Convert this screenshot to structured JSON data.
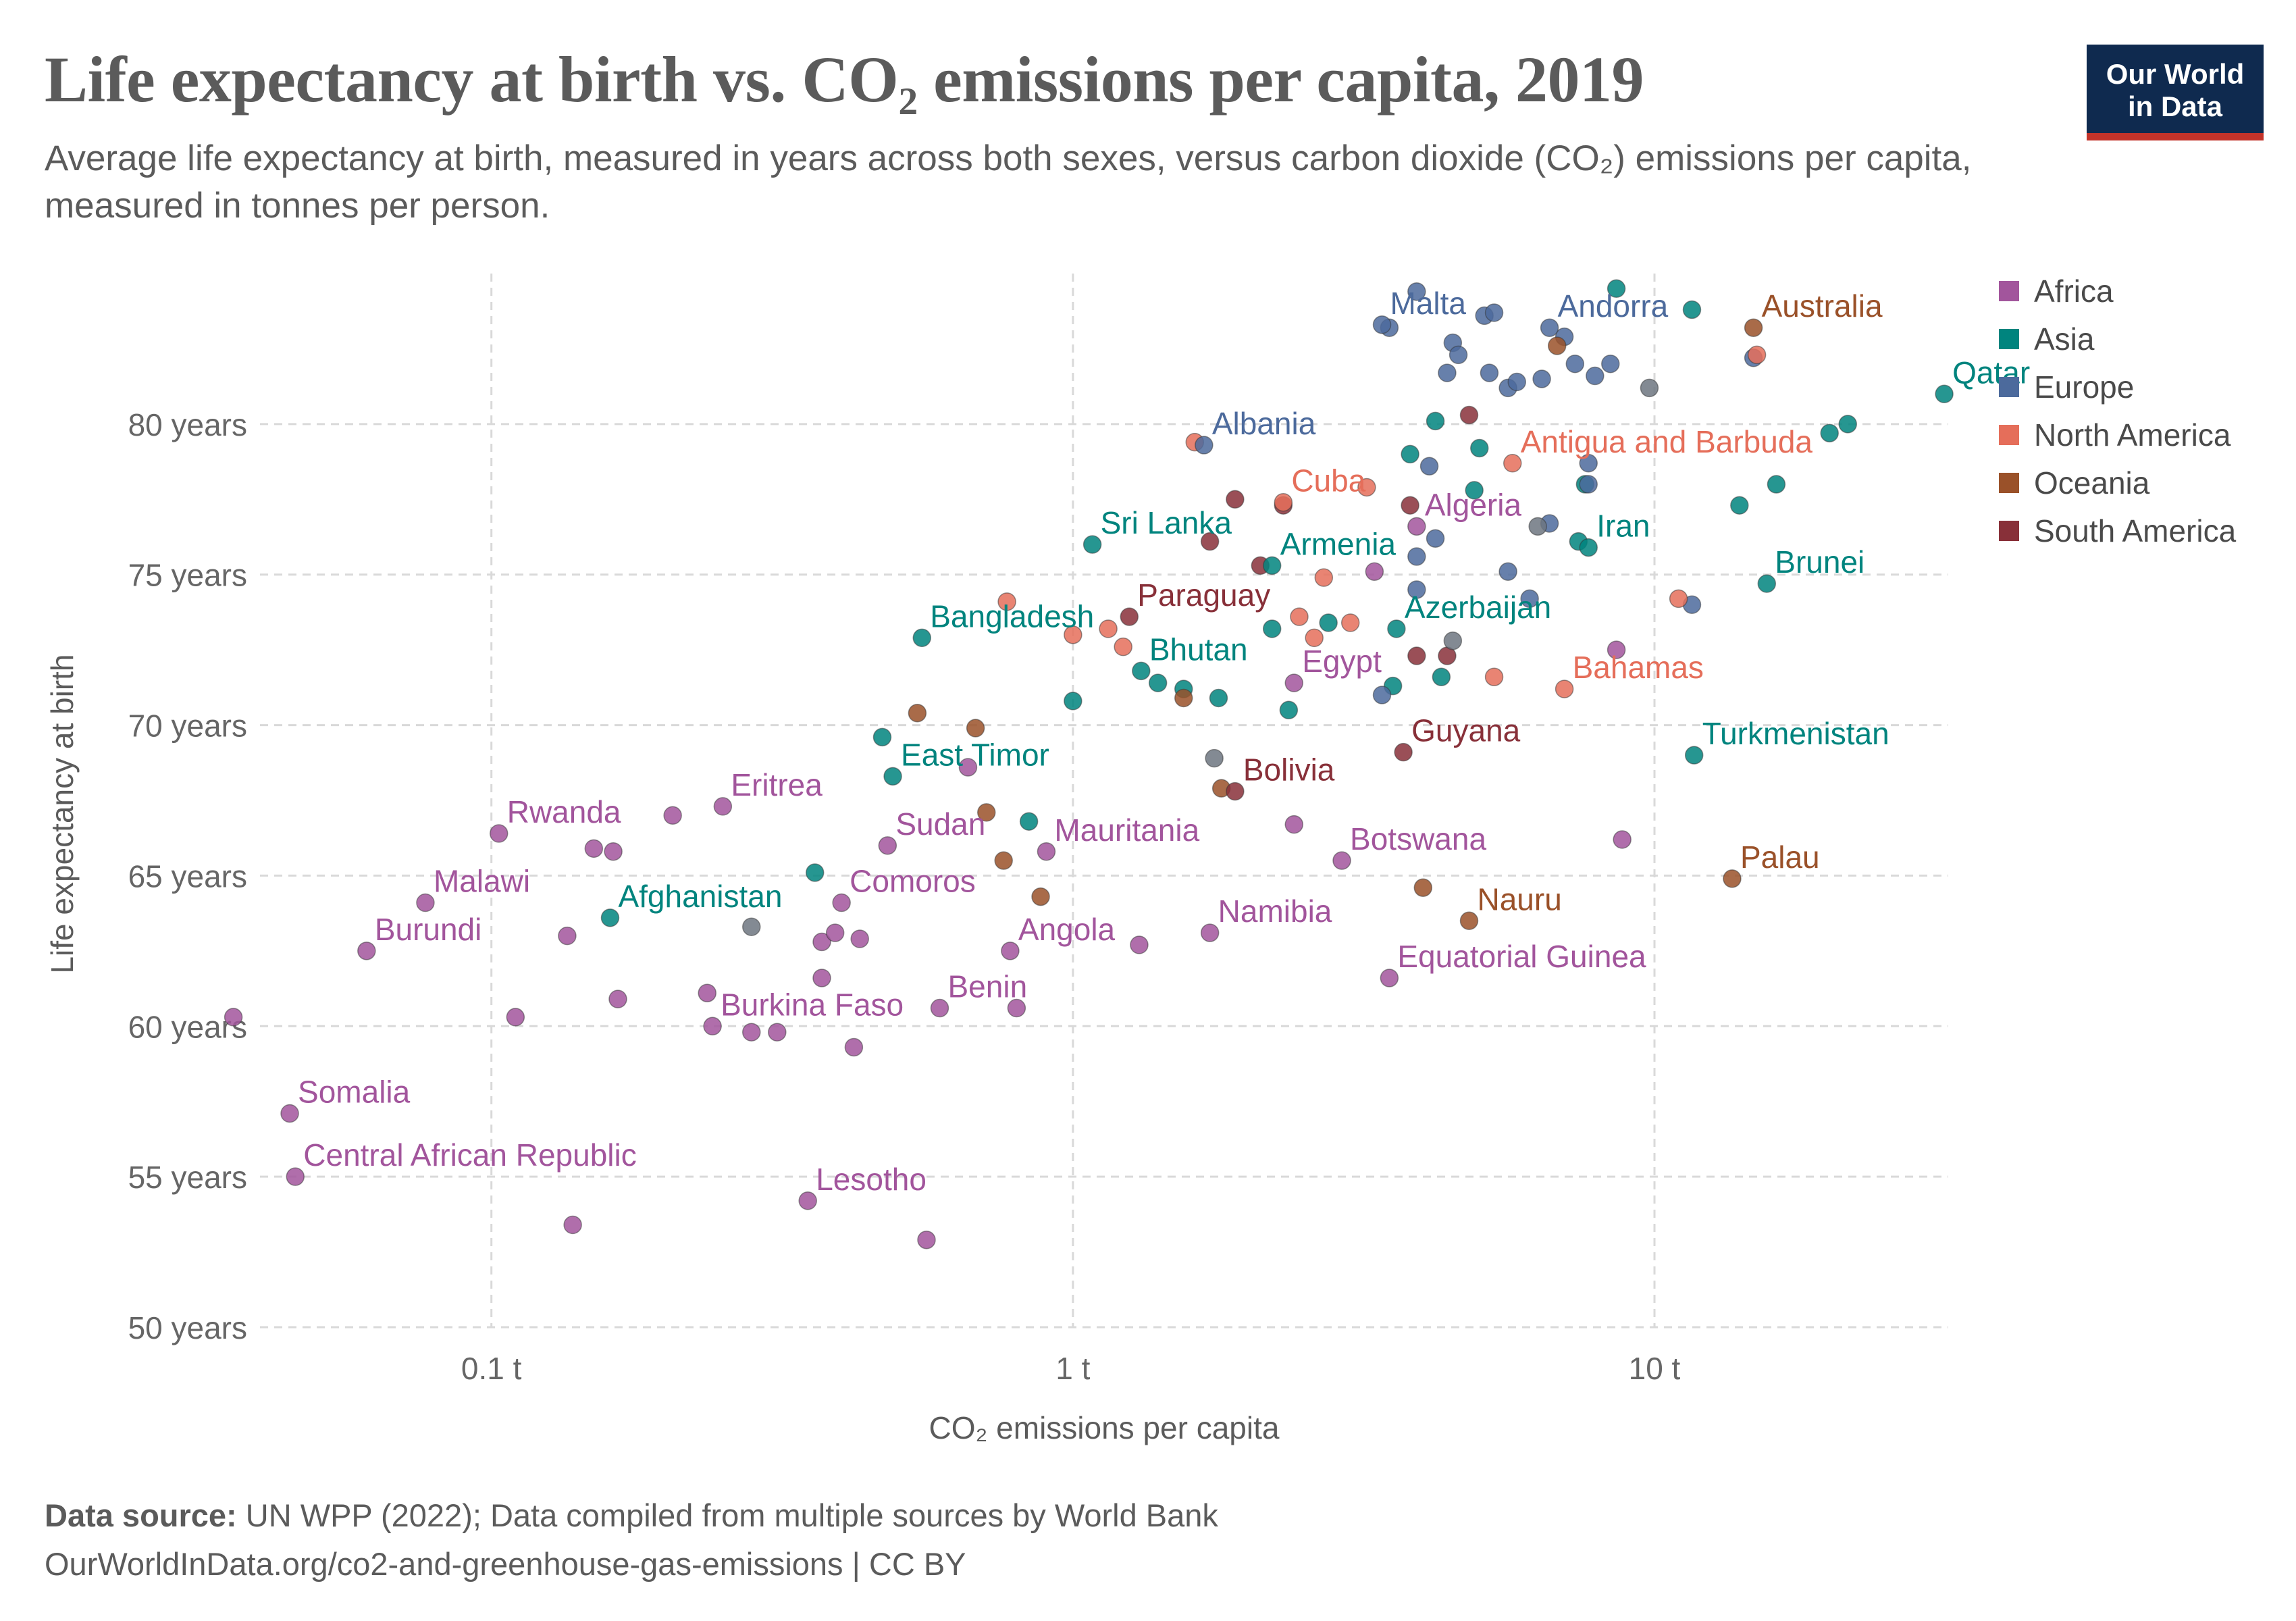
{
  "header": {
    "title": "Life expectancy at birth vs. CO₂ emissions per capita, 2019",
    "subtitle": "Average life expectancy at birth, measured in years across both sexes, versus carbon dioxide (CO₂) emissions per capita, measured in tonnes per person.",
    "logo_line1": "Our World",
    "logo_line2": "in Data"
  },
  "footer": {
    "source_label": "Data source:",
    "source_text": "UN WPP (2022); Data compiled from multiple sources by World Bank",
    "url_line": "OurWorldInData.org/co2-and-greenhouse-gas-emissions | CC BY"
  },
  "colors": {
    "Africa": "#a2559c",
    "Asia": "#00847e",
    "Europe": "#4c6a9c",
    "North America": "#e56e5a",
    "Oceania": "#9a5129",
    "South America": "#883039",
    "Other": "#6d7580"
  },
  "chart_data": {
    "type": "scatter",
    "xlabel": "CO₂ emissions per capita",
    "ylabel": "Life expectancy at birth",
    "x_scale": "log",
    "xlim": [
      0.04,
      32
    ],
    "ylim": [
      50,
      85
    ],
    "x_ticks": [
      {
        "value": 0.1,
        "label": "0.1 t"
      },
      {
        "value": 1,
        "label": "1 t"
      },
      {
        "value": 10,
        "label": "10 t"
      }
    ],
    "y_ticks": [
      {
        "value": 50,
        "label": "50 years"
      },
      {
        "value": 55,
        "label": "55 years"
      },
      {
        "value": 60,
        "label": "60 years"
      },
      {
        "value": 65,
        "label": "65 years"
      },
      {
        "value": 70,
        "label": "70 years"
      },
      {
        "value": 75,
        "label": "75 years"
      },
      {
        "value": 80,
        "label": "80 years"
      }
    ],
    "grid": true,
    "legend_position": "right",
    "legend": [
      "Africa",
      "Asia",
      "Europe",
      "North America",
      "Oceania",
      "South America"
    ],
    "labeled_points": [
      {
        "label": "Malta",
        "region": "Europe",
        "x": 3.4,
        "y": 83.3
      },
      {
        "label": "Andorra",
        "region": "Europe",
        "x": 6.6,
        "y": 83.2
      },
      {
        "label": "Australia",
        "region": "Oceania",
        "x": 14.8,
        "y": 83.2
      },
      {
        "label": "Qatar",
        "region": "Asia",
        "x": 31.5,
        "y": 81.0
      },
      {
        "label": "Albania",
        "region": "Europe",
        "x": 1.68,
        "y": 79.3
      },
      {
        "label": "Antigua and Barbuda",
        "region": "North America",
        "x": 5.7,
        "y": 78.7
      },
      {
        "label": "Cuba",
        "region": "North America",
        "x": 2.3,
        "y": 77.4
      },
      {
        "label": "Algeria",
        "region": "Africa",
        "x": 3.9,
        "y": 76.6
      },
      {
        "label": "Iran",
        "region": "Asia",
        "x": 7.7,
        "y": 75.9
      },
      {
        "label": "Sri Lanka",
        "region": "Asia",
        "x": 1.08,
        "y": 76.0
      },
      {
        "label": "Armenia",
        "region": "Asia",
        "x": 2.2,
        "y": 75.3
      },
      {
        "label": "Brunei",
        "region": "Asia",
        "x": 15.6,
        "y": 74.7
      },
      {
        "label": "Paraguay",
        "region": "South America",
        "x": 1.25,
        "y": 73.6
      },
      {
        "label": "Azerbaijan",
        "region": "Asia",
        "x": 3.6,
        "y": 73.2
      },
      {
        "label": "Bangladesh",
        "region": "Asia",
        "x": 0.55,
        "y": 72.9
      },
      {
        "label": "Bhutan",
        "region": "Asia",
        "x": 1.31,
        "y": 71.8
      },
      {
        "label": "Egypt",
        "region": "Africa",
        "x": 2.4,
        "y": 71.4
      },
      {
        "label": "Bahamas",
        "region": "North America",
        "x": 7.0,
        "y": 71.2
      },
      {
        "label": "Guyana",
        "region": "South America",
        "x": 3.7,
        "y": 69.1
      },
      {
        "label": "Turkmenistan",
        "region": "Asia",
        "x": 11.7,
        "y": 69.0
      },
      {
        "label": "East Timor",
        "region": "Asia",
        "x": 0.49,
        "y": 68.3
      },
      {
        "label": "Bolivia",
        "region": "South America",
        "x": 1.9,
        "y": 67.8
      },
      {
        "label": "Eritrea",
        "region": "Africa",
        "x": 0.25,
        "y": 67.3
      },
      {
        "label": "Rwanda",
        "region": "Africa",
        "x": 0.103,
        "y": 66.4
      },
      {
        "label": "Sudan",
        "region": "Africa",
        "x": 0.48,
        "y": 66.0
      },
      {
        "label": "Mauritania",
        "region": "Africa",
        "x": 0.9,
        "y": 65.8
      },
      {
        "label": "Botswana",
        "region": "Africa",
        "x": 2.9,
        "y": 65.5
      },
      {
        "label": "Palau",
        "region": "Oceania",
        "x": 13.6,
        "y": 64.9
      },
      {
        "label": "Malawi",
        "region": "Africa",
        "x": 0.077,
        "y": 64.1
      },
      {
        "label": "Comoros",
        "region": "Africa",
        "x": 0.4,
        "y": 64.1
      },
      {
        "label": "Afghanistan",
        "region": "Asia",
        "x": 0.16,
        "y": 63.6
      },
      {
        "label": "Nauru",
        "region": "Oceania",
        "x": 4.8,
        "y": 63.5
      },
      {
        "label": "Namibia",
        "region": "Africa",
        "x": 1.72,
        "y": 63.1
      },
      {
        "label": "Burundi",
        "region": "Africa",
        "x": 0.061,
        "y": 62.5
      },
      {
        "label": "Angola",
        "region": "Africa",
        "x": 0.78,
        "y": 62.5
      },
      {
        "label": "Equatorial Guinea",
        "region": "Africa",
        "x": 3.5,
        "y": 61.6
      },
      {
        "label": "Benin",
        "region": "Africa",
        "x": 0.59,
        "y": 60.6
      },
      {
        "label": "Burkina Faso",
        "region": "Africa",
        "x": 0.24,
        "y": 60.0
      },
      {
        "label": "Somalia",
        "region": "Africa",
        "x": 0.045,
        "y": 57.1
      },
      {
        "label": "Central African Republic",
        "region": "Africa",
        "x": 0.046,
        "y": 55.0
      },
      {
        "label": "Lesotho",
        "region": "Africa",
        "x": 0.35,
        "y": 54.2
      }
    ],
    "other_points": [
      {
        "region": "Africa",
        "x": 0.036,
        "y": 60.3
      },
      {
        "region": "Africa",
        "x": 0.11,
        "y": 60.3
      },
      {
        "region": "Africa",
        "x": 0.135,
        "y": 63.0
      },
      {
        "region": "Africa",
        "x": 0.15,
        "y": 65.9
      },
      {
        "region": "Africa",
        "x": 0.162,
        "y": 65.8
      },
      {
        "region": "Africa",
        "x": 0.165,
        "y": 60.9
      },
      {
        "region": "Africa",
        "x": 0.205,
        "y": 67.0
      },
      {
        "region": "Africa",
        "x": 0.138,
        "y": 53.4
      },
      {
        "region": "Africa",
        "x": 0.235,
        "y": 61.1
      },
      {
        "region": "Africa",
        "x": 0.28,
        "y": 59.8
      },
      {
        "region": "Africa",
        "x": 0.31,
        "y": 59.8
      },
      {
        "region": "Africa",
        "x": 0.37,
        "y": 62.8
      },
      {
        "region": "Africa",
        "x": 0.39,
        "y": 63.1
      },
      {
        "region": "Africa",
        "x": 0.37,
        "y": 61.6
      },
      {
        "region": "Africa",
        "x": 0.43,
        "y": 62.9
      },
      {
        "region": "Africa",
        "x": 0.42,
        "y": 59.3
      },
      {
        "region": "Africa",
        "x": 0.56,
        "y": 52.9
      },
      {
        "region": "Africa",
        "x": 0.66,
        "y": 68.6
      },
      {
        "region": "Africa",
        "x": 0.8,
        "y": 60.6
      },
      {
        "region": "Africa",
        "x": 1.3,
        "y": 62.7
      },
      {
        "region": "Africa",
        "x": 2.4,
        "y": 66.7
      },
      {
        "region": "Africa",
        "x": 3.3,
        "y": 75.1
      },
      {
        "region": "Africa",
        "x": 8.6,
        "y": 72.5
      },
      {
        "region": "Africa",
        "x": 8.8,
        "y": 66.2
      },
      {
        "region": "Asia",
        "x": 0.36,
        "y": 65.1
      },
      {
        "region": "Asia",
        "x": 0.47,
        "y": 69.6
      },
      {
        "region": "Asia",
        "x": 0.84,
        "y": 66.8
      },
      {
        "region": "Asia",
        "x": 1.0,
        "y": 70.8
      },
      {
        "region": "Asia",
        "x": 1.4,
        "y": 71.4
      },
      {
        "region": "Asia",
        "x": 1.55,
        "y": 71.2
      },
      {
        "region": "Asia",
        "x": 1.78,
        "y": 70.9
      },
      {
        "region": "Asia",
        "x": 2.2,
        "y": 73.2
      },
      {
        "region": "Asia",
        "x": 2.35,
        "y": 70.5
      },
      {
        "region": "Asia",
        "x": 2.75,
        "y": 73.4
      },
      {
        "region": "Asia",
        "x": 3.55,
        "y": 71.3
      },
      {
        "region": "Asia",
        "x": 3.8,
        "y": 79.0
      },
      {
        "region": "Asia",
        "x": 4.2,
        "y": 80.1
      },
      {
        "region": "Asia",
        "x": 4.3,
        "y": 71.6
      },
      {
        "region": "Asia",
        "x": 4.9,
        "y": 77.8
      },
      {
        "region": "Asia",
        "x": 5.0,
        "y": 79.2
      },
      {
        "region": "Asia",
        "x": 7.4,
        "y": 76.1
      },
      {
        "region": "Asia",
        "x": 7.6,
        "y": 78.0
      },
      {
        "region": "Asia",
        "x": 8.6,
        "y": 84.5
      },
      {
        "region": "Asia",
        "x": 11.6,
        "y": 83.8
      },
      {
        "region": "Asia",
        "x": 14.0,
        "y": 77.3
      },
      {
        "region": "Asia",
        "x": 16.2,
        "y": 78.0
      },
      {
        "region": "Asia",
        "x": 20.0,
        "y": 79.7
      },
      {
        "region": "Asia",
        "x": 21.5,
        "y": 80.0
      },
      {
        "region": "Europe",
        "x": 3.5,
        "y": 83.2
      },
      {
        "region": "Europe",
        "x": 3.9,
        "y": 84.4
      },
      {
        "region": "Europe",
        "x": 4.1,
        "y": 78.6
      },
      {
        "region": "Europe",
        "x": 4.2,
        "y": 76.2
      },
      {
        "region": "Europe",
        "x": 4.4,
        "y": 81.7
      },
      {
        "region": "Europe",
        "x": 4.5,
        "y": 82.7
      },
      {
        "region": "Europe",
        "x": 4.6,
        "y": 82.3
      },
      {
        "region": "Europe",
        "x": 3.9,
        "y": 75.6
      },
      {
        "region": "Europe",
        "x": 3.9,
        "y": 74.5
      },
      {
        "region": "Europe",
        "x": 3.4,
        "y": 71.0
      },
      {
        "region": "Europe",
        "x": 5.1,
        "y": 83.6
      },
      {
        "region": "Europe",
        "x": 5.3,
        "y": 83.7
      },
      {
        "region": "Europe",
        "x": 5.2,
        "y": 81.7
      },
      {
        "region": "Europe",
        "x": 5.6,
        "y": 81.2
      },
      {
        "region": "Europe",
        "x": 5.8,
        "y": 81.4
      },
      {
        "region": "Europe",
        "x": 5.6,
        "y": 75.1
      },
      {
        "region": "Europe",
        "x": 6.4,
        "y": 81.5
      },
      {
        "region": "Europe",
        "x": 6.6,
        "y": 76.7
      },
      {
        "region": "Europe",
        "x": 7.0,
        "y": 82.9
      },
      {
        "region": "Europe",
        "x": 7.3,
        "y": 82.0
      },
      {
        "region": "Europe",
        "x": 7.7,
        "y": 78.0
      },
      {
        "region": "Europe",
        "x": 7.7,
        "y": 78.7
      },
      {
        "region": "Europe",
        "x": 7.9,
        "y": 81.6
      },
      {
        "region": "Europe",
        "x": 8.4,
        "y": 82.0
      },
      {
        "region": "Europe",
        "x": 11.6,
        "y": 74.0
      },
      {
        "region": "Europe",
        "x": 14.8,
        "y": 82.2
      },
      {
        "region": "Europe",
        "x": 6.1,
        "y": 74.2
      },
      {
        "region": "North America",
        "x": 0.77,
        "y": 74.1
      },
      {
        "region": "North America",
        "x": 1.0,
        "y": 73.0
      },
      {
        "region": "North America",
        "x": 1.15,
        "y": 73.2
      },
      {
        "region": "North America",
        "x": 1.22,
        "y": 72.6
      },
      {
        "region": "North America",
        "x": 1.62,
        "y": 79.4
      },
      {
        "region": "North America",
        "x": 2.45,
        "y": 73.6
      },
      {
        "region": "North America",
        "x": 2.6,
        "y": 72.9
      },
      {
        "region": "North America",
        "x": 2.7,
        "y": 74.9
      },
      {
        "region": "North America",
        "x": 3.0,
        "y": 73.4
      },
      {
        "region": "North America",
        "x": 3.2,
        "y": 77.9
      },
      {
        "region": "North America",
        "x": 5.3,
        "y": 71.6
      },
      {
        "region": "North America",
        "x": 11.0,
        "y": 74.2
      },
      {
        "region": "North America",
        "x": 15.0,
        "y": 82.3
      },
      {
        "region": "Oceania",
        "x": 0.54,
        "y": 70.4
      },
      {
        "region": "Oceania",
        "x": 0.68,
        "y": 69.9
      },
      {
        "region": "Oceania",
        "x": 0.71,
        "y": 67.1
      },
      {
        "region": "Oceania",
        "x": 0.76,
        "y": 65.5
      },
      {
        "region": "Oceania",
        "x": 0.88,
        "y": 64.3
      },
      {
        "region": "Oceania",
        "x": 1.55,
        "y": 70.9
      },
      {
        "region": "Oceania",
        "x": 1.8,
        "y": 67.9
      },
      {
        "region": "Oceania",
        "x": 4.0,
        "y": 64.6
      },
      {
        "region": "Oceania",
        "x": 6.8,
        "y": 82.6
      },
      {
        "region": "South America",
        "x": 1.72,
        "y": 76.1
      },
      {
        "region": "South America",
        "x": 1.9,
        "y": 77.5
      },
      {
        "region": "South America",
        "x": 2.1,
        "y": 75.3
      },
      {
        "region": "South America",
        "x": 2.3,
        "y": 77.3
      },
      {
        "region": "South America",
        "x": 3.8,
        "y": 77.3
      },
      {
        "region": "South America",
        "x": 3.9,
        "y": 72.3
      },
      {
        "region": "South America",
        "x": 4.4,
        "y": 72.3
      },
      {
        "region": "South America",
        "x": 4.8,
        "y": 80.3
      },
      {
        "region": "Other",
        "x": 0.28,
        "y": 63.3
      },
      {
        "region": "Other",
        "x": 1.75,
        "y": 68.9
      },
      {
        "region": "Other",
        "x": 4.5,
        "y": 72.8
      },
      {
        "region": "Other",
        "x": 6.3,
        "y": 76.6
      },
      {
        "region": "Other",
        "x": 9.8,
        "y": 81.2
      }
    ]
  }
}
